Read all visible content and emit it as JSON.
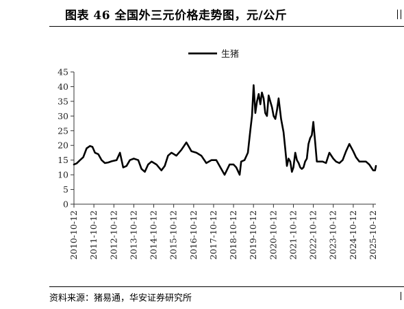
{
  "title": "图表 46 全国外三元价格走势图，元/公斤",
  "source": "资料来源：猪易通，华安证券研究所",
  "chart_data": {
    "type": "line",
    "ylim": [
      0,
      45
    ],
    "yticks": [
      0,
      5,
      10,
      15,
      20,
      25,
      30,
      35,
      40,
      45
    ],
    "xlim": [
      "2010-10-12",
      "2025-12-01"
    ],
    "xtick_labels": [
      "2010-10-12",
      "2011-10-12",
      "2012-10-12",
      "2013-10-12",
      "2014-10-12",
      "2015-10-12",
      "2016-10-12",
      "2017-10-12",
      "2018-10-12",
      "2019-10-12",
      "2020-10-12",
      "2021-10-12",
      "2022-10-12",
      "2023-10-12",
      "2024-10-12",
      "2025-10-12"
    ],
    "legend": "top-center",
    "grid": false,
    "series": [
      {
        "name": "生猪",
        "color": "#000000",
        "points": [
          [
            "2010-10-12",
            13.5
          ],
          [
            "2010-12-01",
            13.9
          ],
          [
            "2011-02-01",
            15.0
          ],
          [
            "2011-04-01",
            16.0
          ],
          [
            "2011-06-01",
            19.0
          ],
          [
            "2011-08-01",
            19.8
          ],
          [
            "2011-09-15",
            19.5
          ],
          [
            "2011-11-01",
            17.5
          ],
          [
            "2012-01-01",
            17.0
          ],
          [
            "2012-03-01",
            15.0
          ],
          [
            "2012-05-01",
            14.0
          ],
          [
            "2012-07-01",
            14.2
          ],
          [
            "2012-09-01",
            14.6
          ],
          [
            "2012-12-01",
            15.0
          ],
          [
            "2013-02-01",
            17.5
          ],
          [
            "2013-04-01",
            12.5
          ],
          [
            "2013-06-01",
            13.0
          ],
          [
            "2013-08-01",
            15.0
          ],
          [
            "2013-10-12",
            15.5
          ],
          [
            "2014-01-01",
            15.0
          ],
          [
            "2014-03-01",
            12.0
          ],
          [
            "2014-05-01",
            11.0
          ],
          [
            "2014-07-01",
            13.5
          ],
          [
            "2014-09-01",
            14.5
          ],
          [
            "2014-12-01",
            13.5
          ],
          [
            "2015-03-01",
            11.5
          ],
          [
            "2015-05-01",
            13.0
          ],
          [
            "2015-07-01",
            16.5
          ],
          [
            "2015-09-01",
            17.5
          ],
          [
            "2015-12-01",
            16.5
          ],
          [
            "2016-03-01",
            18.5
          ],
          [
            "2016-06-01",
            21.0
          ],
          [
            "2016-09-01",
            18.0
          ],
          [
            "2016-12-01",
            17.5
          ],
          [
            "2017-03-01",
            16.5
          ],
          [
            "2017-06-01",
            14.0
          ],
          [
            "2017-09-01",
            15.0
          ],
          [
            "2017-12-01",
            15.0
          ],
          [
            "2018-03-01",
            12.0
          ],
          [
            "2018-05-01",
            10.0
          ],
          [
            "2018-08-01",
            13.5
          ],
          [
            "2018-10-12",
            13.5
          ],
          [
            "2018-12-01",
            12.5
          ],
          [
            "2019-02-01",
            10.0
          ],
          [
            "2019-03-01",
            14.5
          ],
          [
            "2019-05-01",
            15.0
          ],
          [
            "2019-07-01",
            17.5
          ],
          [
            "2019-08-15",
            25.0
          ],
          [
            "2019-09-15",
            30.0
          ],
          [
            "2019-10-15",
            40.5
          ],
          [
            "2019-11-15",
            31.0
          ],
          [
            "2019-12-15",
            35.0
          ],
          [
            "2020-01-15",
            37.5
          ],
          [
            "2020-02-15",
            34.0
          ],
          [
            "2020-03-15",
            38.0
          ],
          [
            "2020-04-15",
            36.0
          ],
          [
            "2020-05-15",
            31.0
          ],
          [
            "2020-06-15",
            30.0
          ],
          [
            "2020-07-15",
            37.0
          ],
          [
            "2020-08-15",
            35.0
          ],
          [
            "2020-09-15",
            33.0
          ],
          [
            "2020-10-15",
            30.0
          ],
          [
            "2020-11-15",
            29.0
          ],
          [
            "2020-12-15",
            32.0
          ],
          [
            "2021-01-15",
            36.0
          ],
          [
            "2021-03-01",
            29.0
          ],
          [
            "2021-04-15",
            24.5
          ],
          [
            "2021-05-15",
            19.0
          ],
          [
            "2021-06-15",
            13.0
          ],
          [
            "2021-07-15",
            15.5
          ],
          [
            "2021-08-15",
            14.5
          ],
          [
            "2021-09-15",
            11.0
          ],
          [
            "2021-10-12",
            12.5
          ],
          [
            "2021-11-15",
            17.5
          ],
          [
            "2021-12-15",
            15.0
          ],
          [
            "2022-01-15",
            14.0
          ],
          [
            "2022-02-15",
            12.5
          ],
          [
            "2022-03-15",
            12.0
          ],
          [
            "2022-04-15",
            12.5
          ],
          [
            "2022-05-15",
            14.5
          ],
          [
            "2022-06-15",
            15.5
          ],
          [
            "2022-07-15",
            20.5
          ],
          [
            "2022-08-15",
            22.5
          ],
          [
            "2022-09-15",
            23.5
          ],
          [
            "2022-10-12",
            28.0
          ],
          [
            "2022-11-15",
            21.0
          ],
          [
            "2022-12-15",
            14.5
          ],
          [
            "2023-02-01",
            14.5
          ],
          [
            "2023-04-01",
            14.5
          ],
          [
            "2023-06-01",
            14.0
          ],
          [
            "2023-08-01",
            17.5
          ],
          [
            "2023-10-12",
            15.5
          ],
          [
            "2023-12-01",
            14.5
          ],
          [
            "2024-02-01",
            14.0
          ],
          [
            "2024-04-01",
            15.0
          ],
          [
            "2024-06-01",
            18.0
          ],
          [
            "2024-08-01",
            20.5
          ],
          [
            "2024-10-12",
            18.0
          ],
          [
            "2024-12-01",
            16.0
          ],
          [
            "2025-02-01",
            14.5
          ],
          [
            "2025-04-01",
            14.5
          ],
          [
            "2025-06-01",
            14.5
          ],
          [
            "2025-08-01",
            13.5
          ],
          [
            "2025-10-12",
            11.5
          ],
          [
            "2025-11-15",
            11.5
          ],
          [
            "2025-12-01",
            13.0
          ]
        ]
      }
    ]
  }
}
